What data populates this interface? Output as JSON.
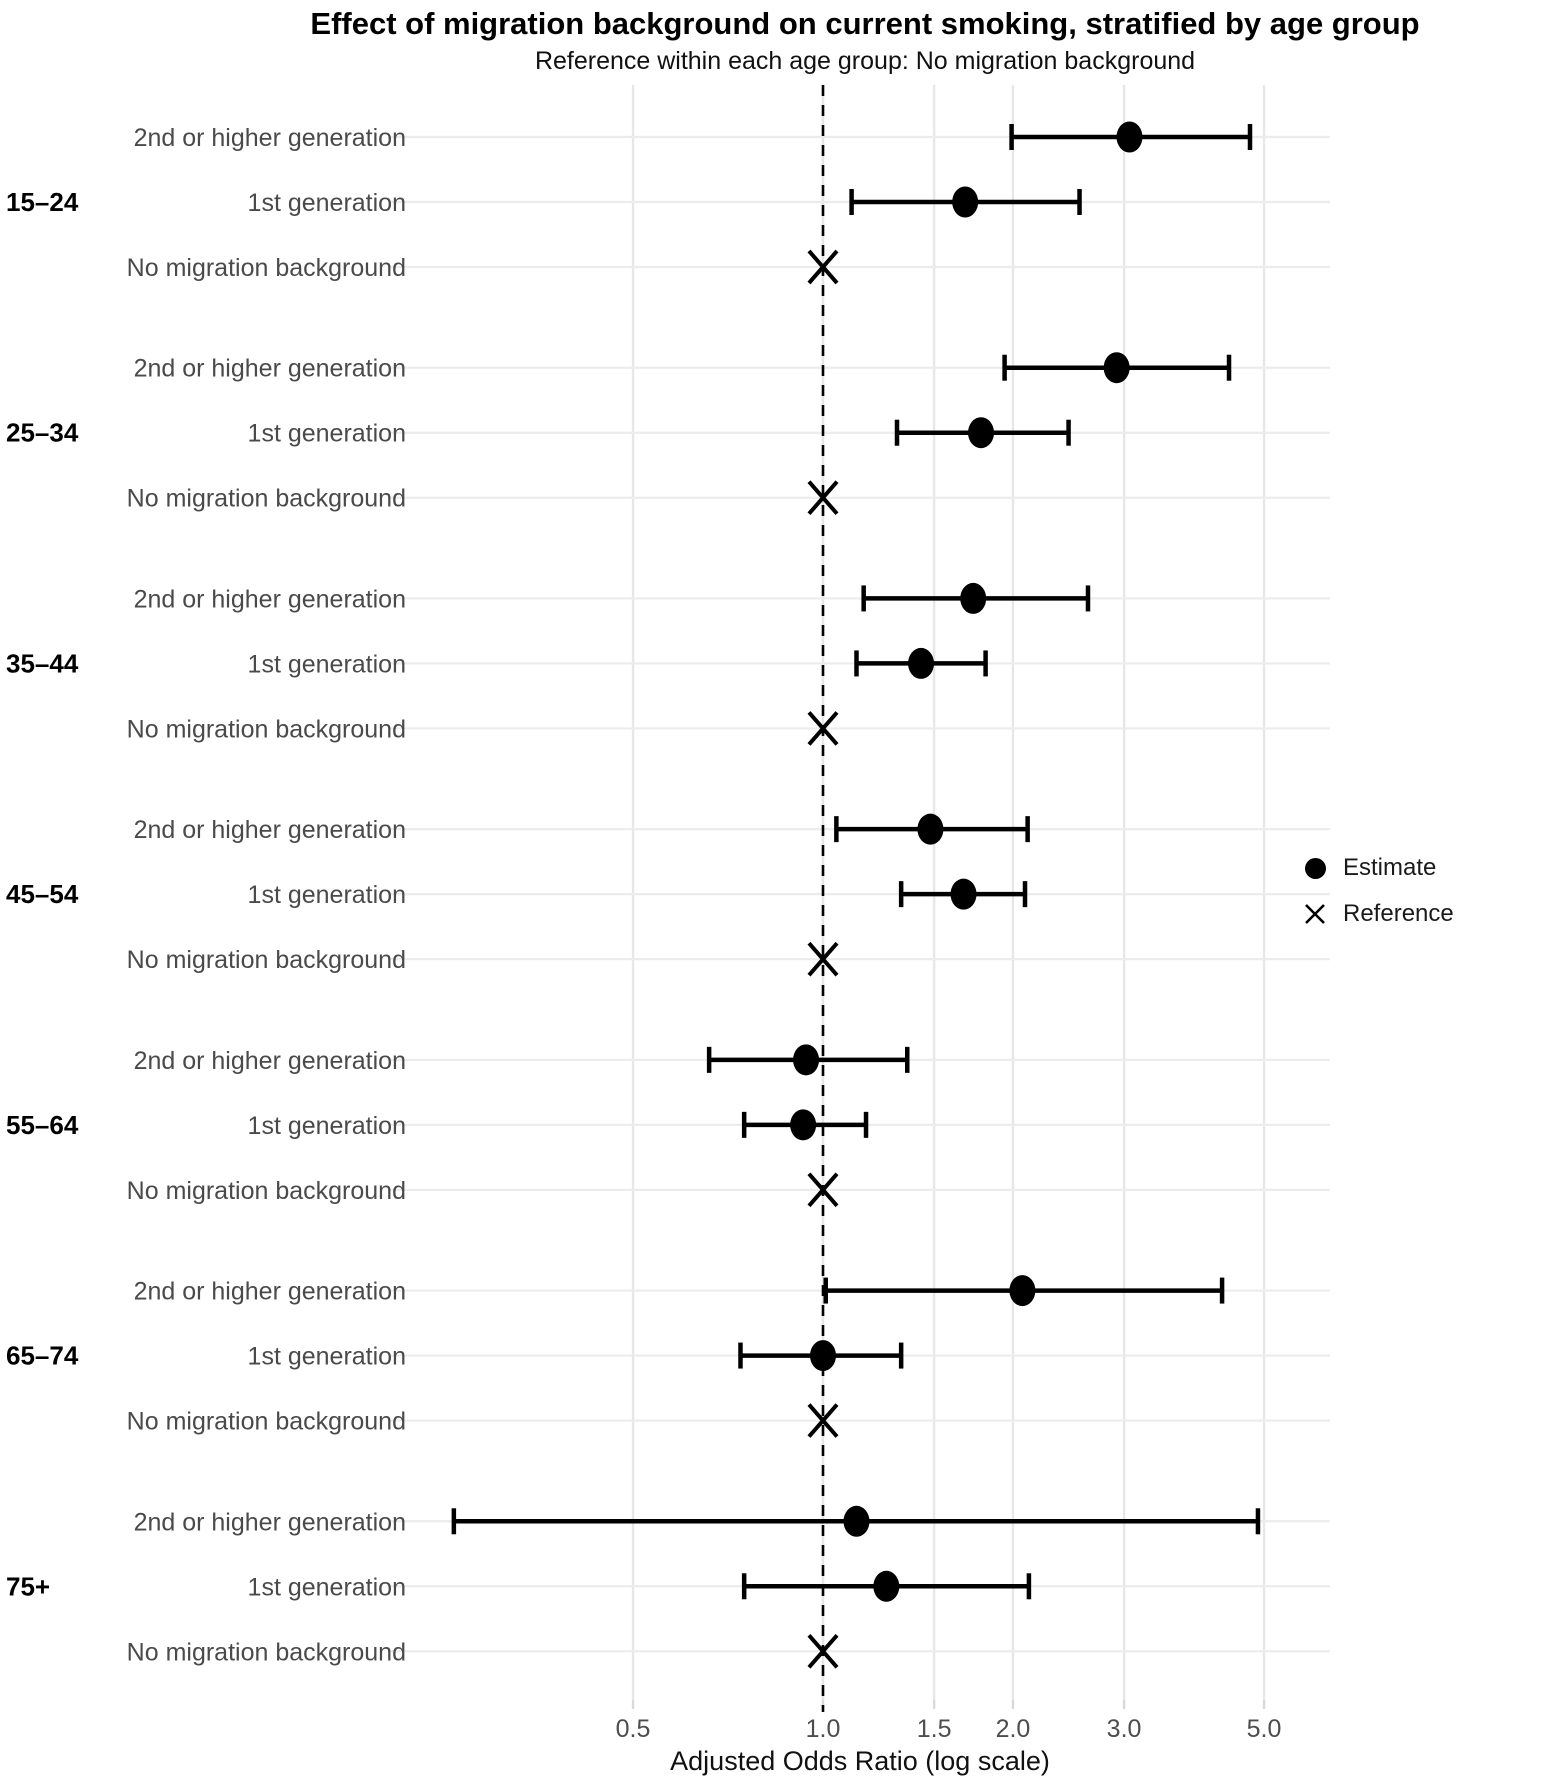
{
  "title": "Effect of migration background on current smoking, stratified by age group",
  "subtitle": "Reference within each age group: No migration background",
  "legend": {
    "items": [
      {
        "label": "Estimate",
        "marker": "filled-circle"
      },
      {
        "label": "Reference",
        "marker": "x-cross"
      }
    ]
  },
  "colors": {
    "marker": "#000000",
    "reference_line": "#000000",
    "grid": "#e7e7e7",
    "row_line": "#ececec",
    "tick": "#d9d9d9",
    "label_text": "#4a4a4a",
    "tick_text": "#4d4d4d",
    "age_text": "#000000"
  },
  "chart_data": {
    "type": "scatter",
    "variant": "forest-plot-with-error-bars",
    "title": "Effect of migration background on current smoking, stratified by age group",
    "subtitle": "Reference within each age group: No migration background",
    "xlabel": "Adjusted Odds Ratio (log scale)",
    "x_scale": "log10",
    "x_ticks": [
      0.5,
      1.0,
      1.5,
      2.0,
      3.0,
      5.0
    ],
    "x_tick_labels": [
      "0.5",
      "1.0",
      "1.5",
      "2.0",
      "3.0",
      "5.0"
    ],
    "x_range": [
      0.21,
      6.3
    ],
    "reference_line_at": 1.0,
    "grid": true,
    "legend_position": "right",
    "row_categories": [
      "2nd or higher generation",
      "1st generation",
      "No migration background"
    ],
    "groups": [
      {
        "age_group": "15–24",
        "rows": [
          {
            "label": "2nd or higher generation",
            "kind": "estimate",
            "or": 3.06,
            "ci_low": 1.99,
            "ci_high": 4.75
          },
          {
            "label": "1st generation",
            "kind": "estimate",
            "or": 1.68,
            "ci_low": 1.11,
            "ci_high": 2.55
          },
          {
            "label": "No migration background",
            "kind": "reference",
            "or": 1.0
          }
        ]
      },
      {
        "age_group": "25–34",
        "rows": [
          {
            "label": "2nd or higher generation",
            "kind": "estimate",
            "or": 2.92,
            "ci_low": 1.94,
            "ci_high": 4.4
          },
          {
            "label": "1st generation",
            "kind": "estimate",
            "or": 1.78,
            "ci_low": 1.31,
            "ci_high": 2.45
          },
          {
            "label": "No migration background",
            "kind": "reference",
            "or": 1.0
          }
        ]
      },
      {
        "age_group": "35–44",
        "rows": [
          {
            "label": "2nd or higher generation",
            "kind": "estimate",
            "or": 1.73,
            "ci_low": 1.16,
            "ci_high": 2.63
          },
          {
            "label": "1st generation",
            "kind": "estimate",
            "or": 1.43,
            "ci_low": 1.13,
            "ci_high": 1.81
          },
          {
            "label": "No migration background",
            "kind": "reference",
            "or": 1.0
          }
        ]
      },
      {
        "age_group": "45–54",
        "rows": [
          {
            "label": "2nd or higher generation",
            "kind": "estimate",
            "or": 1.48,
            "ci_low": 1.05,
            "ci_high": 2.11
          },
          {
            "label": "1st generation",
            "kind": "estimate",
            "or": 1.67,
            "ci_low": 1.33,
            "ci_high": 2.09
          },
          {
            "label": "No migration background",
            "kind": "reference",
            "or": 1.0
          }
        ]
      },
      {
        "age_group": "55–64",
        "rows": [
          {
            "label": "2nd or higher generation",
            "kind": "estimate",
            "or": 0.94,
            "ci_low": 0.66,
            "ci_high": 1.36
          },
          {
            "label": "1st generation",
            "kind": "estimate",
            "or": 0.93,
            "ci_low": 0.75,
            "ci_high": 1.17
          },
          {
            "label": "No migration background",
            "kind": "reference",
            "or": 1.0
          }
        ]
      },
      {
        "age_group": "65–74",
        "rows": [
          {
            "label": "2nd or higher generation",
            "kind": "estimate",
            "or": 2.07,
            "ci_low": 1.01,
            "ci_high": 4.29
          },
          {
            "label": "1st generation",
            "kind": "estimate",
            "or": 1.0,
            "ci_low": 0.74,
            "ci_high": 1.33
          },
          {
            "label": "No migration background",
            "kind": "reference",
            "or": 1.0
          }
        ]
      },
      {
        "age_group": "75+",
        "rows": [
          {
            "label": "2nd or higher generation",
            "kind": "estimate",
            "or": 1.13,
            "ci_low": 0.26,
            "ci_high": 4.89
          },
          {
            "label": "1st generation",
            "kind": "estimate",
            "or": 1.26,
            "ci_low": 0.75,
            "ci_high": 2.12
          },
          {
            "label": "No migration background",
            "kind": "reference",
            "or": 1.0
          }
        ]
      }
    ]
  }
}
